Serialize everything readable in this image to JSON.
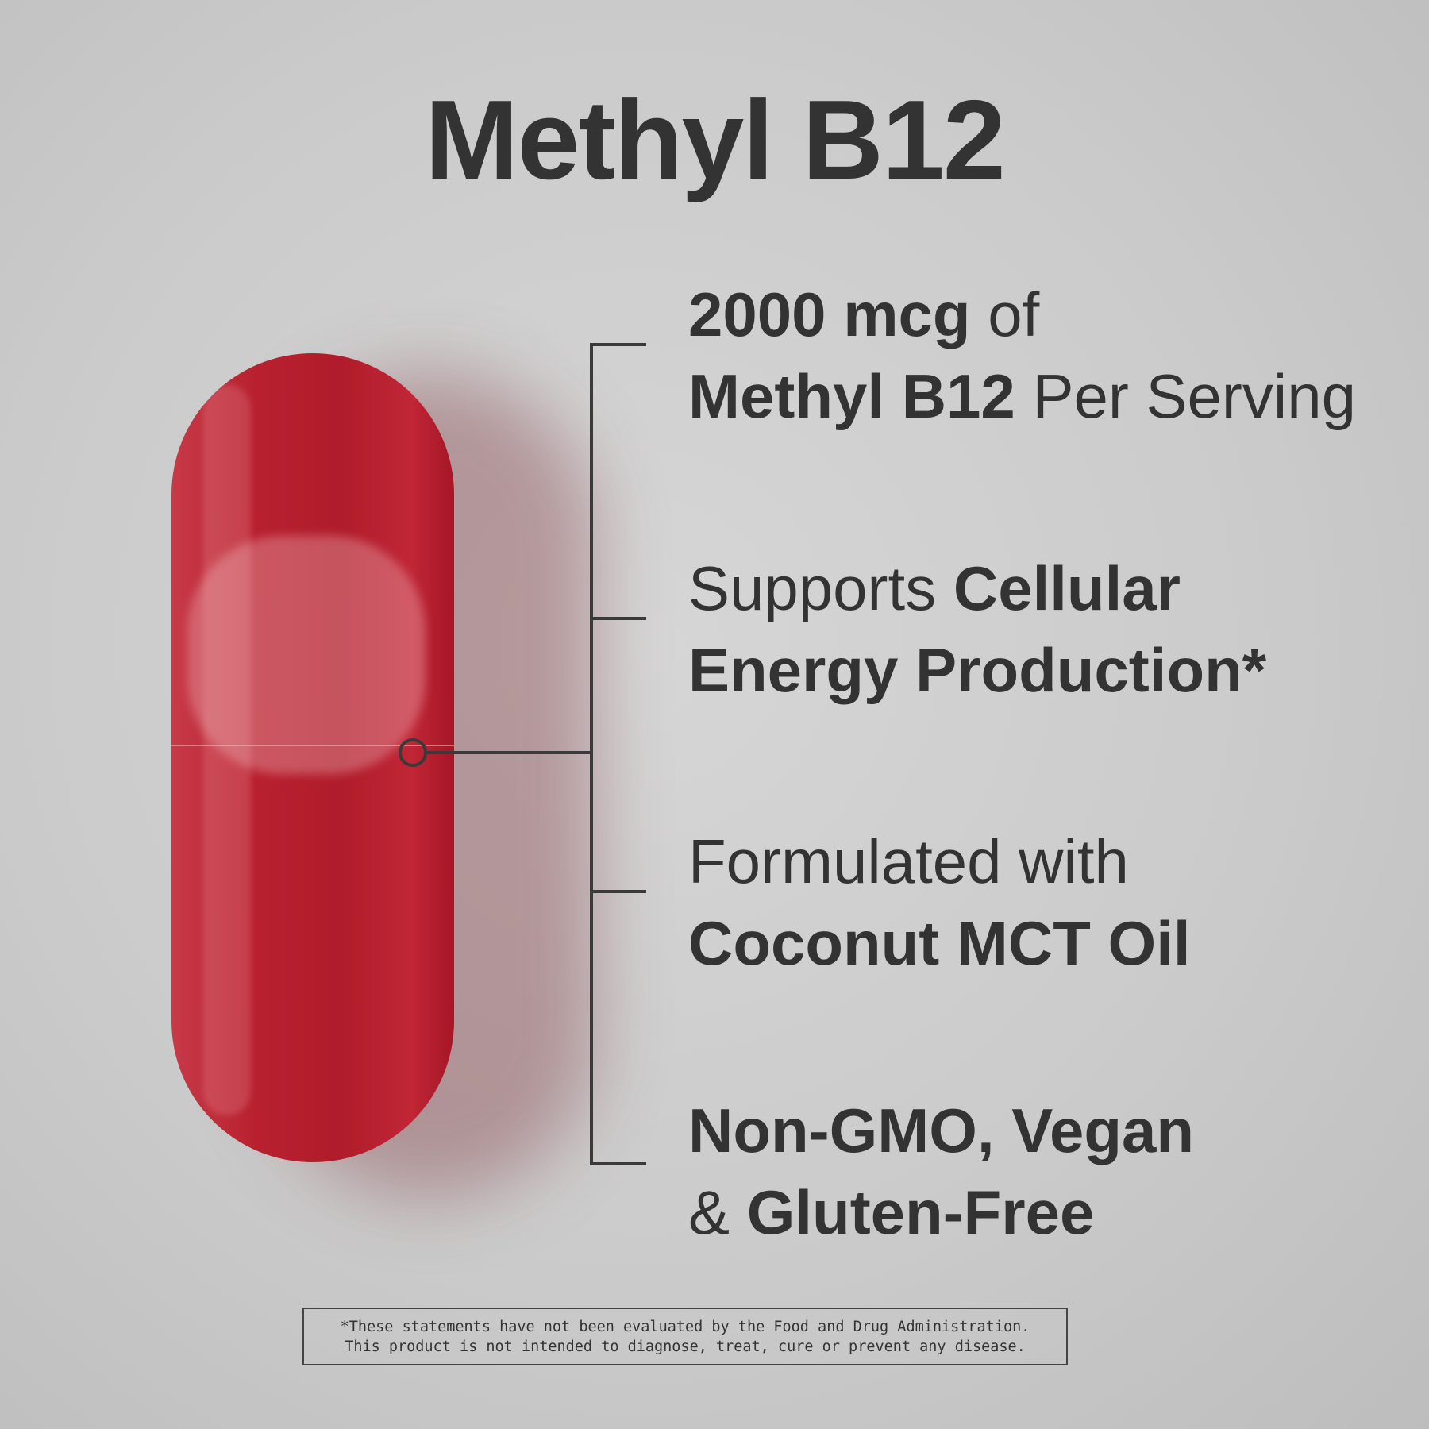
{
  "title": "Methyl B12",
  "features": [
    {
      "line1_bold": "2000 mcg",
      "line1_regular": " of",
      "line2_bold": "Methyl B12",
      "line2_regular": " Per Serving"
    },
    {
      "line1_regular": "Supports ",
      "line1_bold": "Cellular",
      "line2_bold": "Energy Production",
      "line2_regular": "*"
    },
    {
      "line1_regular": "Formulated with",
      "line2_bold": "Coconut MCT Oil"
    },
    {
      "line1_bold": "Non-GMO, Vegan",
      "line2_regular": "& ",
      "line2_bold": "Gluten-Free"
    }
  ],
  "disclaimer": {
    "line1": "*These statements have not been evaluated by the Food and Drug Administration.",
    "line2": "This product is not intended to diagnose, treat, cure or prevent any disease."
  },
  "colors": {
    "capsule": "#b01c2b",
    "text": "#333333",
    "background": "#cbcbcb"
  }
}
